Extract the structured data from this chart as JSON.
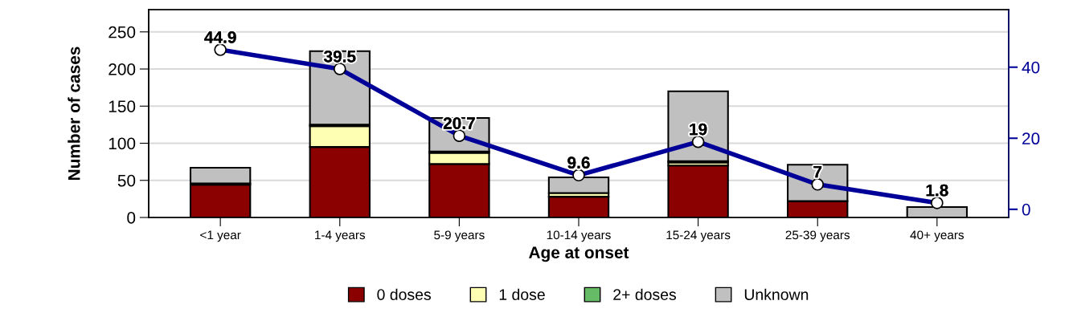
{
  "chart_data": {
    "type": "bar",
    "stacked": true,
    "xlabel": "Age at onset",
    "ylabel": "Number of cases",
    "categories": [
      "<1 year",
      "1-4 years",
      "5-9 years",
      "10-14 years",
      "15-24 years",
      "25-39 years",
      "40+ years"
    ],
    "series": [
      {
        "name": "0 doses",
        "color": "#8b0000",
        "values": [
          44,
          95,
          72,
          28,
          70,
          22,
          null
        ]
      },
      {
        "name": "1 dose",
        "color": "#ffffb3",
        "values": [
          2,
          28,
          15,
          5,
          4,
          0,
          0
        ]
      },
      {
        "name": "2+ doses",
        "color": "#66bb66",
        "values": [
          0,
          2,
          2,
          null,
          2,
          0,
          0
        ]
      },
      {
        "name": "Unknown",
        "color": "#c0c0c0",
        "values": [
          21,
          99,
          45,
          21,
          94,
          49,
          14
        ]
      },
      {
        "type": "line",
        "axis": "y2",
        "color": "#000099",
        "marker": "circle",
        "values": [
          44.9,
          39.5,
          20.7,
          9.6,
          19,
          7,
          1.8
        ],
        "value_labels": [
          "44.9",
          "39.5",
          "20.7",
          "9.6",
          "19",
          "7",
          "1.8"
        ]
      }
    ],
    "ylim": [
      0,
      280
    ],
    "yticks": [
      0,
      50,
      100,
      150,
      200,
      250
    ],
    "y2lim": [
      -2.3,
      56.2
    ],
    "y2ticks": [
      0,
      20,
      40
    ],
    "grid": "y",
    "legend": "bottom"
  }
}
